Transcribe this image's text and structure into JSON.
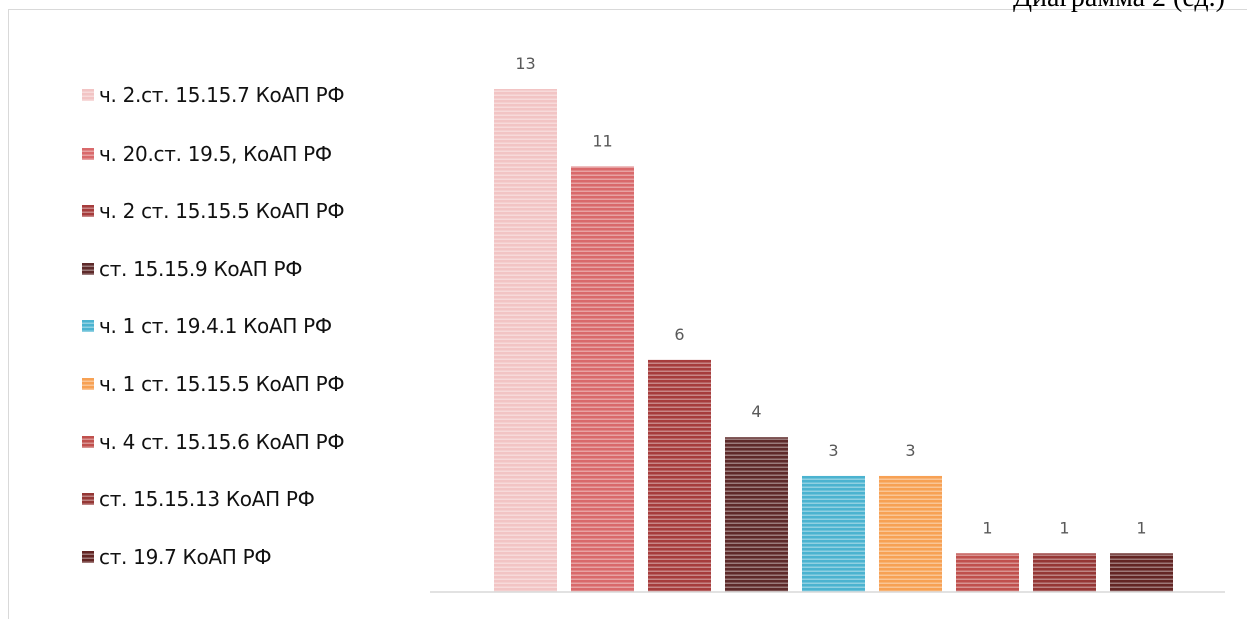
{
  "caption": "Диаграмма 2 (ед.)",
  "chart_data": {
    "type": "bar",
    "categories": [
      "ч. 2.ст. 15.15.7 КоАП РФ",
      "ч. 20.ст. 19.5, КоАП РФ",
      "ч. 2 ст. 15.15.5 КоАП РФ",
      "ст. 15.15.9 КоАП РФ",
      "ч. 1 ст. 19.4.1 КоАП РФ",
      "ч. 1 ст. 15.15.5 КоАП РФ",
      "ч. 4 ст. 15.15.6 КоАП РФ",
      "ст. 15.15.13 КоАП РФ",
      "ст. 19.7 КоАП РФ"
    ],
    "values": [
      13,
      11,
      6,
      4,
      3,
      3,
      1,
      1,
      1
    ],
    "data_labels": [
      "13",
      "11",
      "6",
      "4",
      "3",
      "3",
      "1",
      "1",
      "1"
    ],
    "colors": [
      "#f2c4c4",
      "#d9696b",
      "#a63c3c",
      "#5e2a2a",
      "#4bb3d0",
      "#f7a154",
      "#c0504d",
      "#953735",
      "#632523"
    ],
    "ylim": [
      0,
      13
    ],
    "grid": false,
    "legend_position": "left",
    "bar_fill": "horizontal-stripes"
  }
}
